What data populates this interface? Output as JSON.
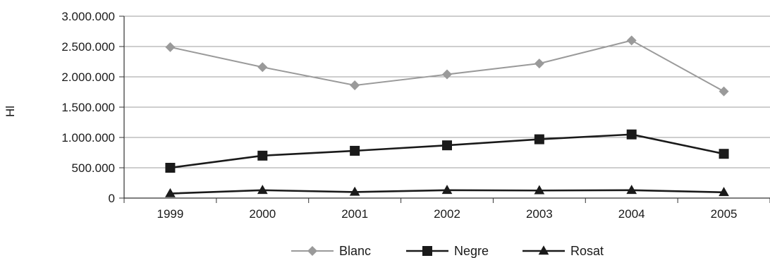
{
  "chart_data": {
    "type": "line",
    "title": "",
    "xlabel": "",
    "ylabel": "Hl",
    "categories": [
      "1999",
      "2000",
      "2001",
      "2002",
      "2003",
      "2004",
      "2005"
    ],
    "y_tick_labels": [
      "0",
      "500.000",
      "1.000.000",
      "1.500.000",
      "2.000.000",
      "2.500.000",
      "3.000.000"
    ],
    "ylim": [
      0,
      3000000
    ],
    "grid": true,
    "legend_position": "bottom",
    "series": [
      {
        "name": "Blanc",
        "marker": "diamond",
        "color": "#9a9a9a",
        "values": [
          2490000,
          2160000,
          1860000,
          2040000,
          2220000,
          2600000,
          1760000
        ]
      },
      {
        "name": "Negre",
        "marker": "square",
        "color": "#1a1a1a",
        "values": [
          500000,
          700000,
          780000,
          870000,
          970000,
          1050000,
          730000
        ]
      },
      {
        "name": "Rosat",
        "marker": "triangle",
        "color": "#1a1a1a",
        "values": [
          75000,
          130000,
          100000,
          130000,
          125000,
          130000,
          95000
        ]
      }
    ]
  }
}
